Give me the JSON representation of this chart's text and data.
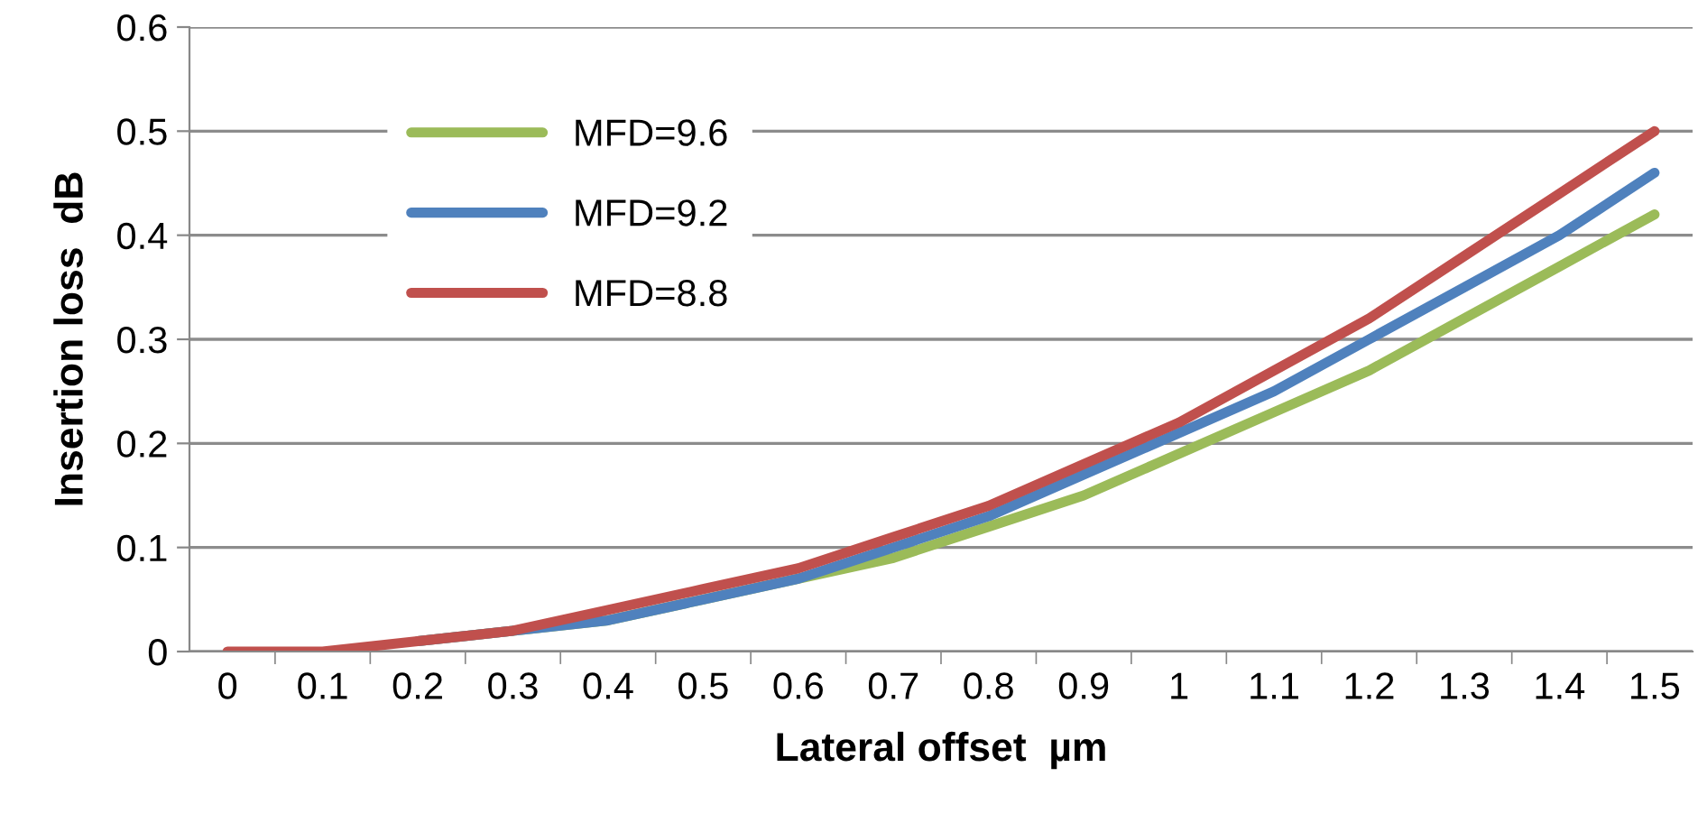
{
  "chart_data": {
    "type": "line",
    "xlabel": "Lateral offset  µm",
    "ylabel": "Insertion loss  dB",
    "categories": [
      "0",
      "0.1",
      "0.2",
      "0.3",
      "0.4",
      "0.5",
      "0.6",
      "0.7",
      "0.8",
      "0.9",
      "1",
      "1.1",
      "1.2",
      "1.3",
      "1.4",
      "1.5"
    ],
    "series": [
      {
        "name": "MFD=9.6",
        "color": "#9bbb59",
        "values": [
          null,
          null,
          0.01,
          0.02,
          0.03,
          0.05,
          0.07,
          0.09,
          0.12,
          0.15,
          0.19,
          0.23,
          0.27,
          0.32,
          0.37,
          0.42
        ]
      },
      {
        "name": "MFD=9.2",
        "color": "#4f81bd",
        "values": [
          null,
          null,
          0.01,
          0.02,
          0.03,
          0.05,
          0.07,
          0.1,
          0.13,
          0.17,
          0.21,
          0.25,
          0.3,
          0.35,
          0.4,
          0.46
        ]
      },
      {
        "name": "MFD=8.8",
        "color": "#c0504d",
        "values": [
          0,
          0.0,
          0.01,
          0.02,
          0.04,
          0.06,
          0.08,
          0.11,
          0.14,
          0.18,
          0.22,
          0.27,
          0.32,
          0.38,
          0.44,
          0.5
        ]
      }
    ],
    "ylim": [
      0,
      0.6
    ],
    "yticks": [
      0,
      0.1,
      0.2,
      0.3,
      0.4,
      0.5,
      0.6
    ],
    "grid": "y",
    "legend": "top left",
    "marker": "none",
    "line_style": "solid"
  }
}
